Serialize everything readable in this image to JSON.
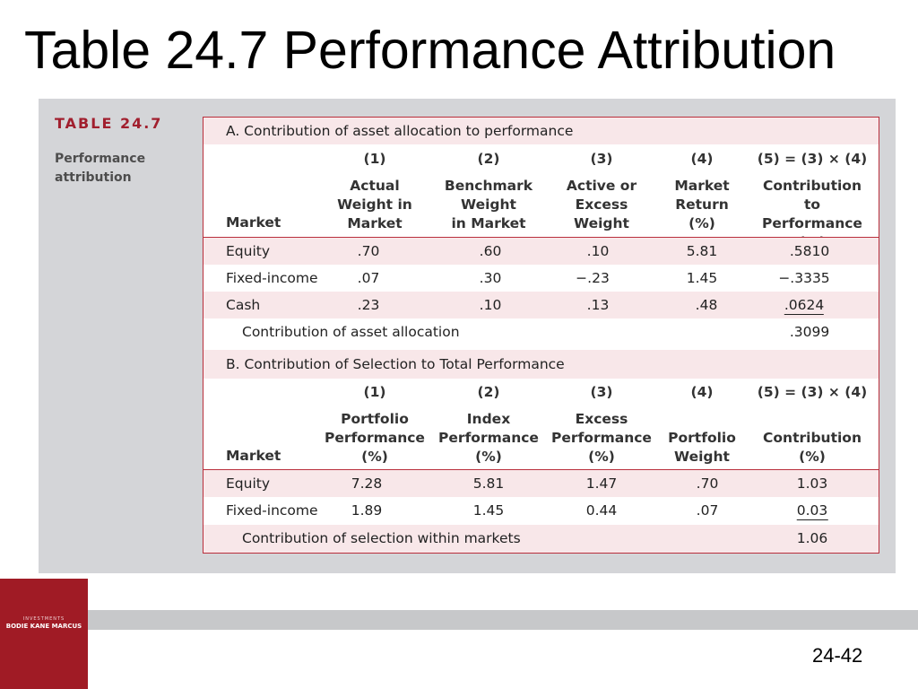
{
  "slide": {
    "title": "Table 24.7 Performance Attribution",
    "number": "24-42"
  },
  "table_label": "TABLE 24.7",
  "table_description": "Performance attribution",
  "logo": {
    "small_text": "INVESTMENTS",
    "authors": "BODIE  KANE  MARCUS"
  },
  "panel_a": {
    "title": "A. Contribution of asset allocation to performance",
    "col_numbers": [
      "(1)",
      "(2)",
      "(3)",
      "(4)",
      "(5) = (3) × (4)"
    ],
    "market_label": "Market",
    "col_headers": [
      "Actual\nWeight in\nMarket",
      "Benchmark\nWeight\nin Market",
      "Active or\nExcess\nWeight",
      "Market\nReturn\n(%)",
      "Contribution to\nPerformance\n(%)"
    ],
    "rows": [
      {
        "label": "Equity",
        "cells": [
          ".70",
          ".60",
          ".10",
          "5.81",
          ".5810"
        ]
      },
      {
        "label": "Fixed-income",
        "cells": [
          ".07",
          ".30",
          "−.23",
          "1.45",
          "−.3335"
        ]
      },
      {
        "label": "Cash",
        "cells": [
          ".23",
          ".10",
          ".13",
          ".48",
          ".0624"
        ]
      }
    ],
    "summary_label": "Contribution of asset allocation",
    "summary_value": ".3099"
  },
  "panel_b": {
    "title": "B. Contribution of Selection to Total Performance",
    "col_numbers": [
      "(1)",
      "(2)",
      "(3)",
      "(4)",
      "(5) = (3) × (4)"
    ],
    "market_label": "Market",
    "col_headers": [
      "Portfolio\nPerformance\n(%)",
      "Index\nPerformance\n(%)",
      "Excess\nPerformance\n(%)",
      "Portfolio\nWeight",
      "Contribution\n(%)"
    ],
    "rows": [
      {
        "label": "Equity",
        "cells": [
          "7.28",
          "5.81",
          "1.47",
          ".70",
          "1.03"
        ]
      },
      {
        "label": "Fixed-income",
        "cells": [
          "1.89",
          "1.45",
          "0.44",
          ".07",
          "0.03"
        ]
      }
    ],
    "summary_label": "Contribution of selection within markets",
    "summary_value": "1.06"
  }
}
